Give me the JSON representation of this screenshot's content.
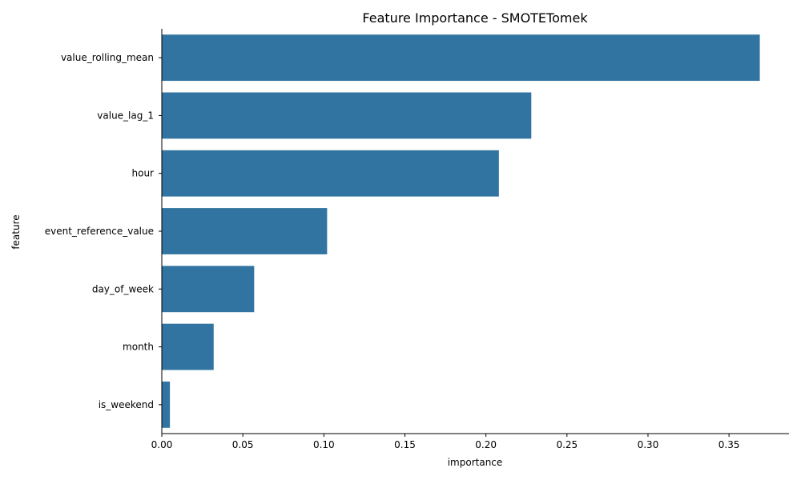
{
  "chart_data": {
    "type": "bar",
    "orientation": "horizontal",
    "title": "Feature Importance - SMOTETomek",
    "xlabel": "importance",
    "ylabel": "feature",
    "categories": [
      "value_rolling_mean",
      "value_lag_1",
      "hour",
      "event_reference_value",
      "day_of_week",
      "month",
      "is_weekend"
    ],
    "values": [
      0.369,
      0.228,
      0.208,
      0.102,
      0.057,
      0.032,
      0.005
    ],
    "xlim": [
      0,
      0.387
    ],
    "xticks": [
      "0.00",
      "0.05",
      "0.10",
      "0.15",
      "0.20",
      "0.25",
      "0.30",
      "0.35"
    ],
    "bar_color": "#3274a1",
    "grid": false,
    "legend": false
  }
}
